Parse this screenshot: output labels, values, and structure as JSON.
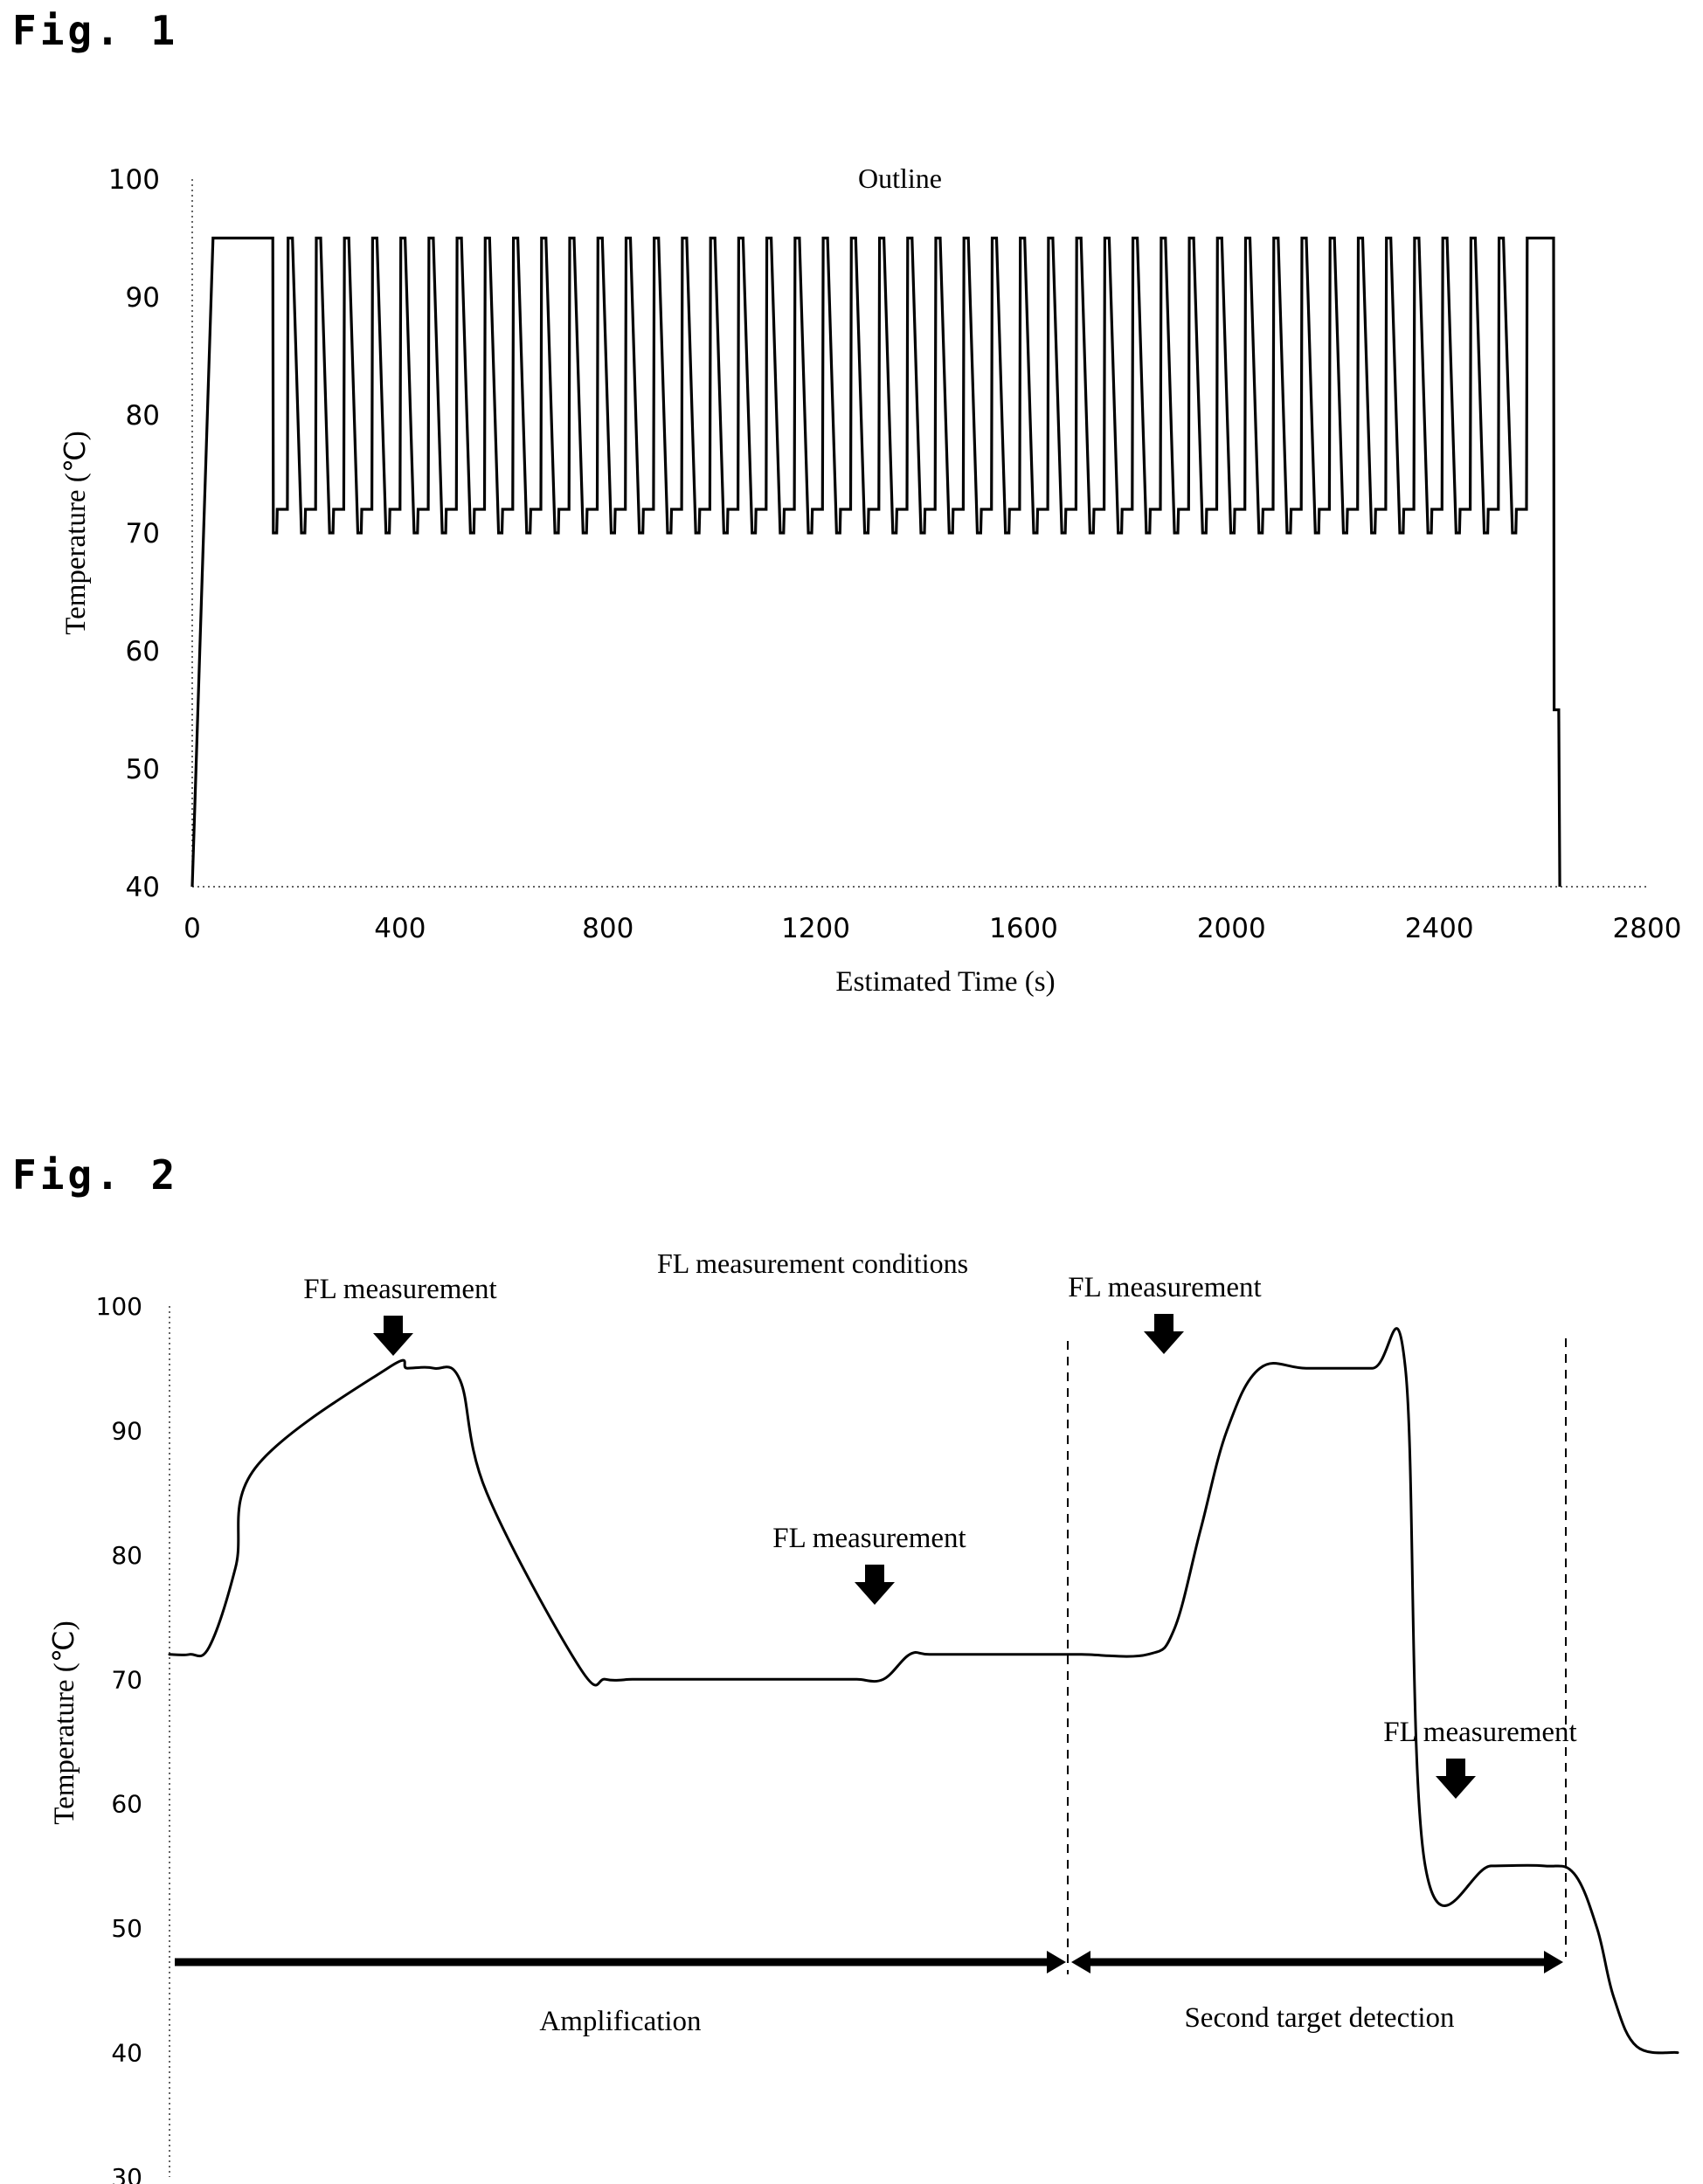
{
  "figures": {
    "fig1_label": "Fig. 1",
    "fig2_label": "Fig. 2"
  },
  "chart_data": [
    {
      "type": "line",
      "title": "Outline",
      "xlabel": "Estimated Time (s)",
      "ylabel": "Temperature (℃)",
      "xlim": [
        0,
        2800
      ],
      "ylim": [
        40,
        100
      ],
      "xticks": [
        0,
        400,
        800,
        1200,
        1600,
        2000,
        2400,
        2800
      ],
      "yticks": [
        40,
        50,
        60,
        70,
        80,
        90,
        100
      ],
      "grid": false,
      "profile": {
        "initial_ramp_end_s": 40,
        "initial_denaturation_end_s": 155,
        "cycles": 45,
        "cycle_period_s": 54.2,
        "denaturation_temp": 95,
        "annealing_temp": 70,
        "extension_temp": 72,
        "final_drop_s": 2620,
        "final_hold_temp": 55,
        "end_s": 2640
      },
      "x": [
        0,
        40,
        155,
        156,
        163,
        165,
        185,
        200,
        2620,
        2621,
        2630,
        2632
      ],
      "y": [
        40,
        95,
        95,
        70,
        70,
        72,
        72,
        95,
        95,
        55,
        55,
        40
      ]
    },
    {
      "type": "line",
      "title": "FL measurement conditions",
      "xlabel": "",
      "ylabel": "Temperature (℃)",
      "ylim": [
        30,
        100
      ],
      "yticks": [
        30,
        40,
        50,
        60,
        70,
        80,
        90,
        100
      ],
      "grid": false,
      "x": [
        0,
        30,
        60,
        100,
        130,
        330,
        360,
        400,
        440,
        480,
        620,
        660,
        700,
        730,
        760,
        800,
        900,
        960,
        1000,
        1040,
        1080,
        1120,
        1150,
        1220,
        1260,
        1290,
        1330,
        1380,
        1480,
        1520,
        1560,
        1600,
        1650,
        1720,
        1820,
        1870,
        1920,
        1960,
        2010,
        2060,
        2110,
        2160,
        2190,
        2240,
        2282
      ],
      "y": [
        72,
        72,
        72.6,
        79,
        87,
        95,
        95,
        95,
        94,
        85,
        71,
        70,
        70,
        70,
        70,
        70,
        70,
        70,
        70,
        70,
        70,
        72,
        72,
        72,
        72,
        72,
        72,
        72,
        72,
        74,
        82,
        90,
        95,
        95,
        95,
        95,
        95,
        95,
        94,
        88,
        76,
        64,
        57,
        55,
        55
      ],
      "series_tail": {
        "x": [
          1900,
          2000,
          2080,
          2125,
          2160,
          2185,
          2220,
          2282
        ],
        "y": [
          55,
          55,
          55,
          54.4,
          50,
          44.5,
          40.5,
          40
        ]
      },
      "annotations": {
        "fl_label_1": "FL measurement",
        "fl_label_2": "FL measurement",
        "fl_label_3": "FL measurement",
        "fl_label_4": "FL measurement",
        "phase_1": "Amplification",
        "phase_2": "Second target detection"
      }
    }
  ]
}
